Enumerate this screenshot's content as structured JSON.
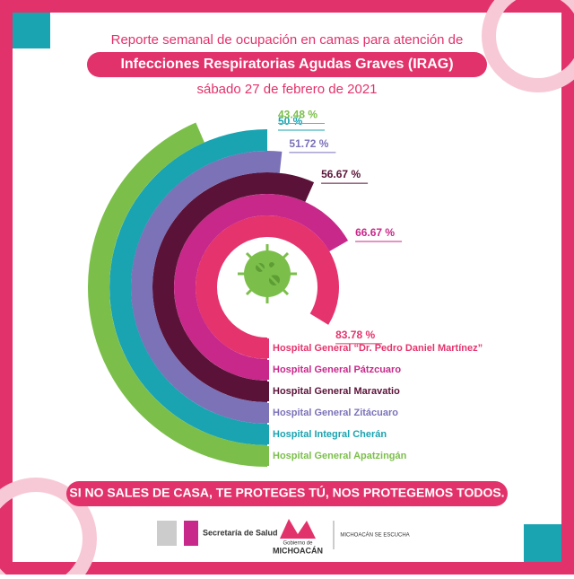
{
  "chart_data": {
    "type": "radial-bar",
    "title": "Reporte semanal de ocupación en camas para atención de",
    "subtitle": "Infecciones Respiratorias Agudas Graves (IRAG)",
    "date": "sábado 27 de febrero de 2021",
    "categories": [
      "Hospital General “Dr. Pedro Daniel Martínez”",
      "Hospital General Pátzcuaro",
      "Hospital General Maravatio",
      "Hospital General Zitácuaro",
      "Hospital Integral Cherán",
      "Hospital General Apatzingán"
    ],
    "values": [
      83.78,
      66.67,
      56.67,
      51.72,
      50,
      43.48
    ],
    "value_labels": [
      "83.78 %",
      "66.67 %",
      "56.67 %",
      "51.72 %",
      "50 %",
      "43.48 %"
    ],
    "colors": [
      "#e5336d",
      "#c8288a",
      "#5b1238",
      "#7b72b8",
      "#1aa3b1",
      "#7bbf4a"
    ],
    "ylim": [
      0,
      100
    ]
  },
  "footer": {
    "slogan": "SI NO SALES DE CASA, TE PROTEGES TÚ, NOS PROTEGEMOS TODOS.",
    "logo1": "Secretaría de Salud",
    "logo2_top": "Gobierno de",
    "logo2": "MICHOACÁN",
    "logo3": "MICHOACÁN SE ESCUCHA"
  }
}
